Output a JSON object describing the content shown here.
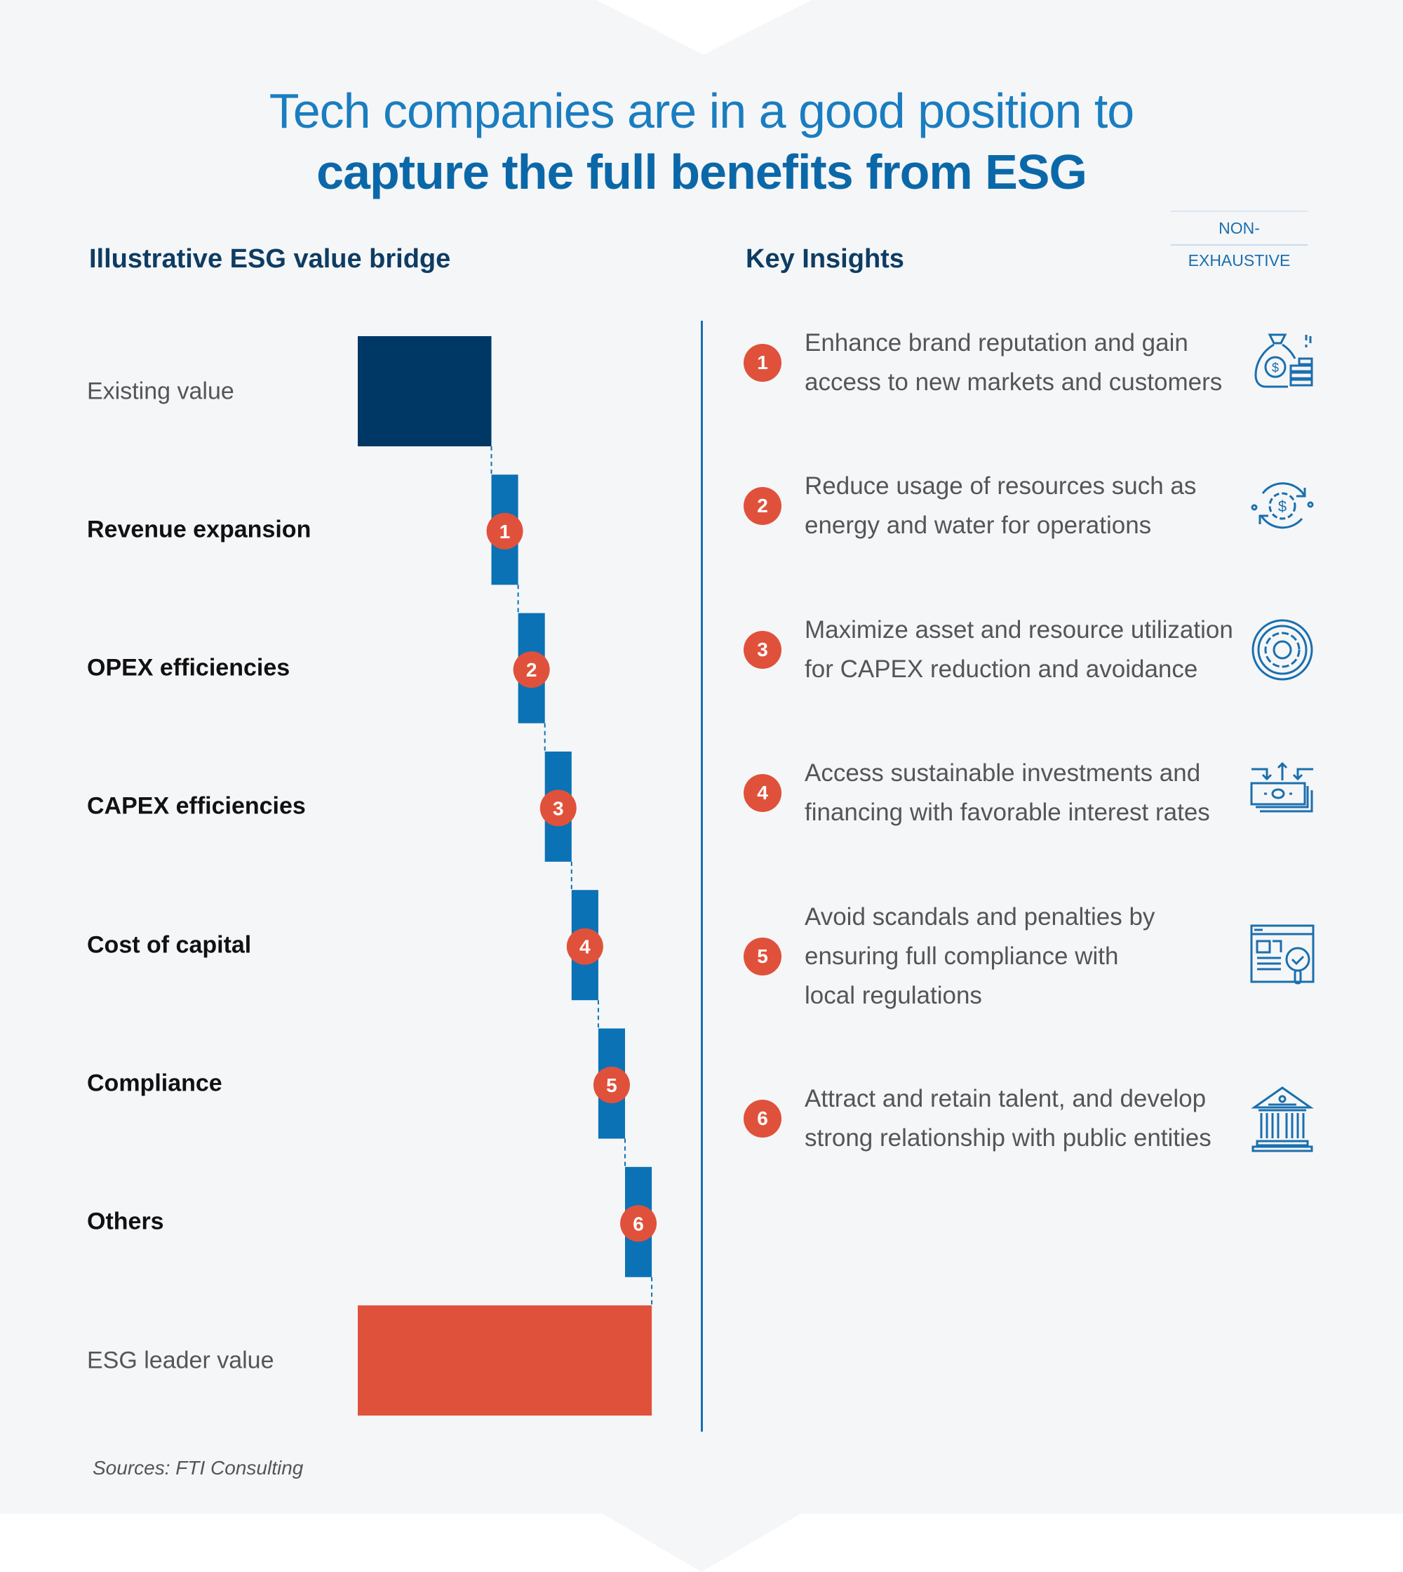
{
  "title": {
    "line1": "Tech companies are in a good position to",
    "line2": "capture the full benefits from ESG"
  },
  "badge": "NON-EXHAUSTIVE",
  "left_header": "Illustrative ESG value bridge",
  "right_header": "Key Insights",
  "colors": {
    "existing": "#003865",
    "step": "#0b72b5",
    "leader": "#e0513b",
    "marker": "#e0513b",
    "accent": "#1a6fae"
  },
  "chart_data": {
    "type": "bar",
    "subtype": "waterfall",
    "title": "Illustrative ESG value bridge",
    "categories": [
      "Existing value",
      "Revenue expansion",
      "OPEX efficiencies",
      "CAPEX efficiencies",
      "Cost of capital",
      "Compliance",
      "Others",
      "ESG leader value"
    ],
    "values": [
      5,
      1,
      1,
      1,
      1,
      1,
      1,
      11
    ],
    "kinds": [
      "total",
      "increase",
      "increase",
      "increase",
      "increase",
      "increase",
      "increase",
      "total"
    ],
    "markers": [
      "",
      "1",
      "2",
      "3",
      "4",
      "5",
      "6",
      ""
    ],
    "orientation": "horizontal",
    "grid": false,
    "axes_shown": false
  },
  "insights": [
    {
      "num": "1",
      "text": "Enhance brand reputation and gain access to new markets and customers",
      "icon": "money-bag-coins-icon"
    },
    {
      "num": "2",
      "text": "Reduce usage of resources such as energy and water for operations",
      "icon": "gear-dollar-cycle-icon"
    },
    {
      "num": "3",
      "text": "Maximize asset and resource utilization for CAPEX reduction and avoidance",
      "icon": "gear-icon"
    },
    {
      "num": "4",
      "text": "Access sustainable investments and financing with favorable interest rates",
      "icon": "cash-stack-arrows-icon"
    },
    {
      "num": "5",
      "text": "Avoid scandals and penalties by ensuring full compliance with local regulations",
      "icon": "document-check-magnifier-icon"
    },
    {
      "num": "6",
      "text": "Attract and retain talent, and develop strong relationship with public entities",
      "icon": "government-building-icon"
    }
  ],
  "sources": "Sources: FTI Consulting"
}
